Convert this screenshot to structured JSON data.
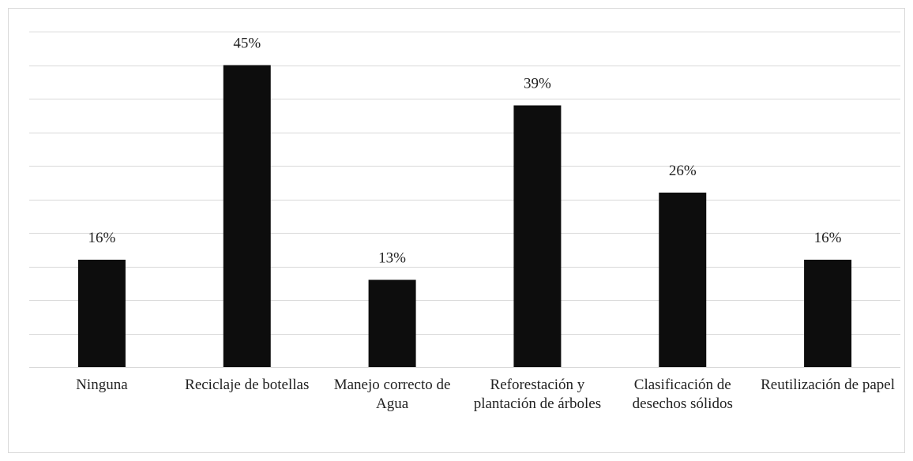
{
  "chart_data": {
    "type": "bar",
    "categories": [
      "Ninguna",
      "Reciclaje de botellas",
      "Manejo correcto de Agua",
      "Reforestación y plantación de árboles",
      "Clasificación de desechos sólidos",
      "Reutilización de papel"
    ],
    "values": [
      16,
      45,
      13,
      39,
      26,
      16
    ],
    "value_labels": [
      "16%",
      "45%",
      "13%",
      "39%",
      "26%",
      "16%"
    ],
    "color": "#0d0d0d",
    "ylim": [
      0,
      50
    ],
    "yticks": [
      0,
      5,
      10,
      15,
      20,
      25,
      30,
      35,
      40,
      45,
      50
    ],
    "grid": true
  }
}
